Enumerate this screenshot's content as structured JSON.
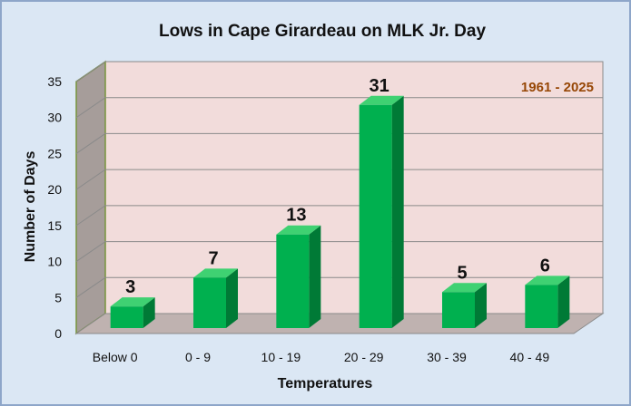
{
  "chart_data": {
    "type": "bar",
    "title": "Lows in Cape Girardeau on MLK Jr. Day",
    "xlabel": "Temperatures",
    "ylabel": "Number of Days",
    "categories": [
      "Below 0",
      "0 - 9",
      "10 - 19",
      "20 - 29",
      "30 - 39",
      "40 - 49"
    ],
    "values": [
      3,
      7,
      13,
      31,
      5,
      6
    ],
    "ylim": [
      0,
      35
    ],
    "yticks": [
      0,
      5,
      10,
      15,
      20,
      25,
      30,
      35
    ],
    "grid": true,
    "legend": "none",
    "annotation": "1961 - 2025",
    "colors": {
      "bar_front": "#00b04f",
      "bar_side": "#007a36",
      "bar_top": "#3fd172",
      "back_wall": "#f2dcdb",
      "side_wall": "#a69d9a",
      "floor": "#bfb2b0",
      "annotation": "#974706",
      "background": "#dbe7f4"
    }
  }
}
